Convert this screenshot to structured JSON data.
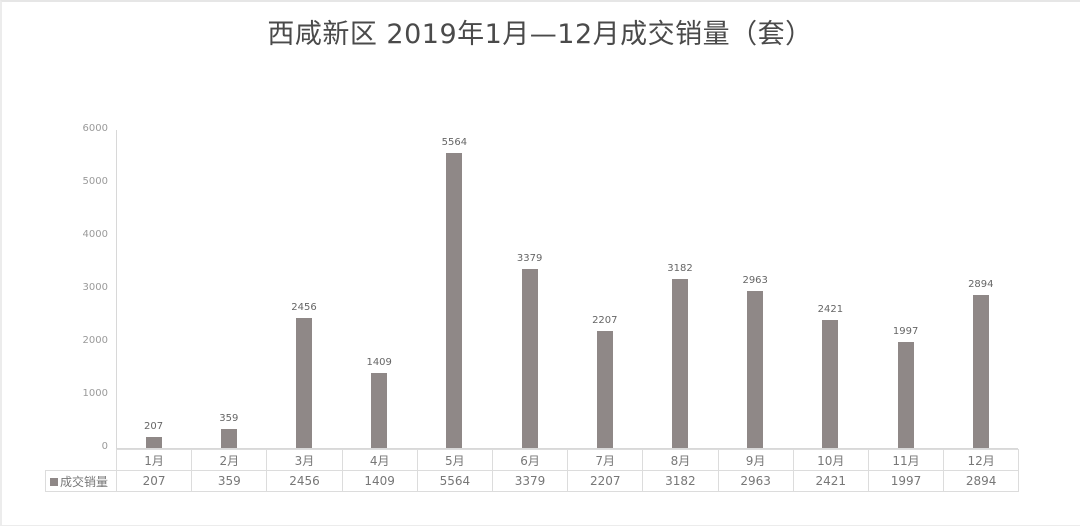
{
  "title": "西咸新区  2019年1月—12月成交销量（套）",
  "chart_data": {
    "type": "bar",
    "title": "西咸新区  2019年1月—12月成交销量（套）",
    "xlabel": "",
    "ylabel": "",
    "ylim": [
      0,
      6000
    ],
    "yticks": [
      "6000",
      "5000",
      "4000",
      "3000",
      "2000",
      "1000",
      "0"
    ],
    "categories": [
      "1月",
      "2月",
      "3月",
      "4月",
      "5月",
      "6月",
      "7月",
      "8月",
      "9月",
      "10月",
      "11月",
      "12月"
    ],
    "series": [
      {
        "name": "成交销量",
        "color": "#8f8887",
        "values": [
          207,
          359,
          2456,
          1409,
          5564,
          3379,
          2207,
          3182,
          2963,
          2421,
          1997,
          2894
        ]
      }
    ],
    "value_labels": [
      "207",
      "359",
      "2456",
      "1409",
      "5564",
      "3379",
      "2207",
      "3182",
      "2963",
      "2421",
      "1997",
      "2894"
    ],
    "grid": false,
    "legend_position": "data-table-bottom",
    "data_table": true
  }
}
